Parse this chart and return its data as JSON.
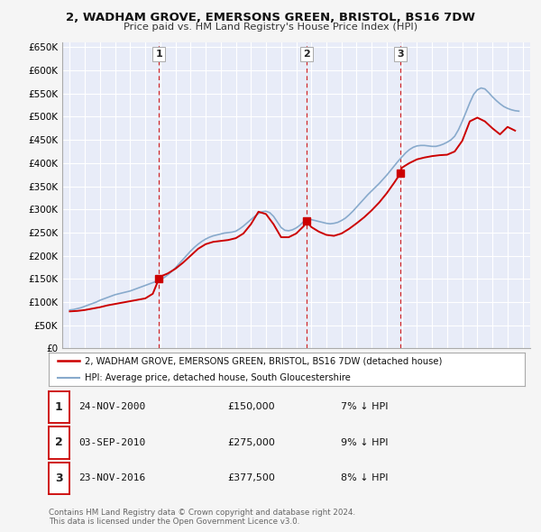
{
  "title": "2, WADHAM GROVE, EMERSONS GREEN, BRISTOL, BS16 7DW",
  "subtitle": "Price paid vs. HM Land Registry's House Price Index (HPI)",
  "fig_bg_color": "#f5f5f5",
  "plot_bg_color": "#e8ecf8",
  "grid_color": "#ffffff",
  "ylim": [
    0,
    660000
  ],
  "yticks": [
    0,
    50000,
    100000,
    150000,
    200000,
    250000,
    300000,
    350000,
    400000,
    450000,
    500000,
    550000,
    600000,
    650000
  ],
  "ytick_labels": [
    "£0",
    "£50K",
    "£100K",
    "£150K",
    "£200K",
    "£250K",
    "£300K",
    "£350K",
    "£400K",
    "£450K",
    "£500K",
    "£550K",
    "£600K",
    "£650K"
  ],
  "sale_color": "#cc0000",
  "hpi_color": "#88aacc",
  "vline_color": "#cc0000",
  "transactions": [
    {
      "label": "1",
      "date_num": 2000.9,
      "price": 150000
    },
    {
      "label": "2",
      "date_num": 2010.67,
      "price": 275000
    },
    {
      "label": "3",
      "date_num": 2016.9,
      "price": 377500
    }
  ],
  "legend_sale_label": "2, WADHAM GROVE, EMERSONS GREEN, BRISTOL, BS16 7DW (detached house)",
  "legend_hpi_label": "HPI: Average price, detached house, South Gloucestershire",
  "table_rows": [
    {
      "num": "1",
      "date": "24-NOV-2000",
      "price": "£150,000",
      "pct": "7% ↓ HPI"
    },
    {
      "num": "2",
      "date": "03-SEP-2010",
      "price": "£275,000",
      "pct": "9% ↓ HPI"
    },
    {
      "num": "3",
      "date": "23-NOV-2016",
      "price": "£377,500",
      "pct": "8% ↓ HPI"
    }
  ],
  "footer": "Contains HM Land Registry data © Crown copyright and database right 2024.\nThis data is licensed under the Open Government Licence v3.0.",
  "hpi_x": [
    1995,
    1995.25,
    1995.5,
    1995.75,
    1996,
    1996.25,
    1996.5,
    1996.75,
    1997,
    1997.25,
    1997.5,
    1997.75,
    1998,
    1998.25,
    1998.5,
    1998.75,
    1999,
    1999.25,
    1999.5,
    1999.75,
    2000,
    2000.25,
    2000.5,
    2000.75,
    2001,
    2001.25,
    2001.5,
    2001.75,
    2002,
    2002.25,
    2002.5,
    2002.75,
    2003,
    2003.25,
    2003.5,
    2003.75,
    2004,
    2004.25,
    2004.5,
    2004.75,
    2005,
    2005.25,
    2005.5,
    2005.75,
    2006,
    2006.25,
    2006.5,
    2006.75,
    2007,
    2007.25,
    2007.5,
    2007.75,
    2008,
    2008.25,
    2008.5,
    2008.75,
    2009,
    2009.25,
    2009.5,
    2009.75,
    2010,
    2010.25,
    2010.5,
    2010.75,
    2011,
    2011.25,
    2011.5,
    2011.75,
    2012,
    2012.25,
    2012.5,
    2012.75,
    2013,
    2013.25,
    2013.5,
    2013.75,
    2014,
    2014.25,
    2014.5,
    2014.75,
    2015,
    2015.25,
    2015.5,
    2015.75,
    2016,
    2016.25,
    2016.5,
    2016.75,
    2017,
    2017.25,
    2017.5,
    2017.75,
    2018,
    2018.25,
    2018.5,
    2018.75,
    2019,
    2019.25,
    2019.5,
    2019.75,
    2020,
    2020.25,
    2020.5,
    2020.75,
    2021,
    2021.25,
    2021.5,
    2021.75,
    2022,
    2022.25,
    2022.5,
    2022.75,
    2023,
    2023.25,
    2023.5,
    2023.75,
    2024,
    2024.25,
    2024.5,
    2024.75
  ],
  "hpi_y": [
    83000,
    84000,
    86000,
    88000,
    91000,
    94000,
    97000,
    100000,
    104000,
    107000,
    110000,
    113000,
    116000,
    118000,
    120000,
    122000,
    124000,
    127000,
    130000,
    133000,
    136000,
    139000,
    142000,
    145000,
    148000,
    153000,
    159000,
    166000,
    174000,
    183000,
    192000,
    201000,
    210000,
    218000,
    225000,
    231000,
    236000,
    240000,
    243000,
    245000,
    247000,
    249000,
    250000,
    251000,
    253000,
    258000,
    264000,
    271000,
    278000,
    285000,
    291000,
    295000,
    296000,
    293000,
    285000,
    273000,
    261000,
    255000,
    254000,
    256000,
    260000,
    266000,
    274000,
    278000,
    278000,
    276000,
    274000,
    272000,
    270000,
    269000,
    270000,
    272000,
    276000,
    281000,
    288000,
    296000,
    305000,
    314000,
    323000,
    332000,
    340000,
    348000,
    356000,
    365000,
    374000,
    384000,
    394000,
    404000,
    413000,
    422000,
    429000,
    434000,
    437000,
    438000,
    438000,
    437000,
    436000,
    436000,
    438000,
    441000,
    445000,
    450000,
    458000,
    472000,
    490000,
    510000,
    530000,
    548000,
    558000,
    562000,
    560000,
    552000,
    543000,
    535000,
    528000,
    522000,
    518000,
    515000,
    513000,
    512000
  ],
  "sale_x": [
    1995,
    1995.5,
    1996,
    1996.5,
    1997,
    1997.5,
    1998,
    1998.5,
    1999,
    1999.5,
    2000,
    2000.5,
    2000.9,
    2001,
    2001.5,
    2002,
    2002.5,
    2003,
    2003.5,
    2004,
    2004.5,
    2005,
    2005.5,
    2006,
    2006.5,
    2007,
    2007.5,
    2008,
    2008.5,
    2009,
    2009.5,
    2010,
    2010.5,
    2010.67,
    2011,
    2011.5,
    2012,
    2012.5,
    2013,
    2013.5,
    2014,
    2014.5,
    2015,
    2015.5,
    2016,
    2016.5,
    2016.9,
    2017,
    2017.5,
    2018,
    2018.5,
    2019,
    2019.5,
    2020,
    2020.5,
    2021,
    2021.5,
    2022,
    2022.5,
    2023,
    2023.5,
    2024,
    2024.5
  ],
  "sale_y": [
    80000,
    81000,
    83000,
    86000,
    89000,
    93000,
    96000,
    99000,
    102000,
    105000,
    108000,
    118000,
    150000,
    155000,
    162000,
    172000,
    185000,
    200000,
    215000,
    225000,
    230000,
    232000,
    234000,
    238000,
    248000,
    268000,
    295000,
    290000,
    268000,
    240000,
    240000,
    248000,
    264000,
    275000,
    262000,
    252000,
    245000,
    243000,
    248000,
    258000,
    270000,
    283000,
    298000,
    315000,
    335000,
    358000,
    377500,
    390000,
    400000,
    408000,
    412000,
    415000,
    417000,
    418000,
    425000,
    448000,
    490000,
    498000,
    490000,
    475000,
    462000,
    478000,
    470000
  ]
}
